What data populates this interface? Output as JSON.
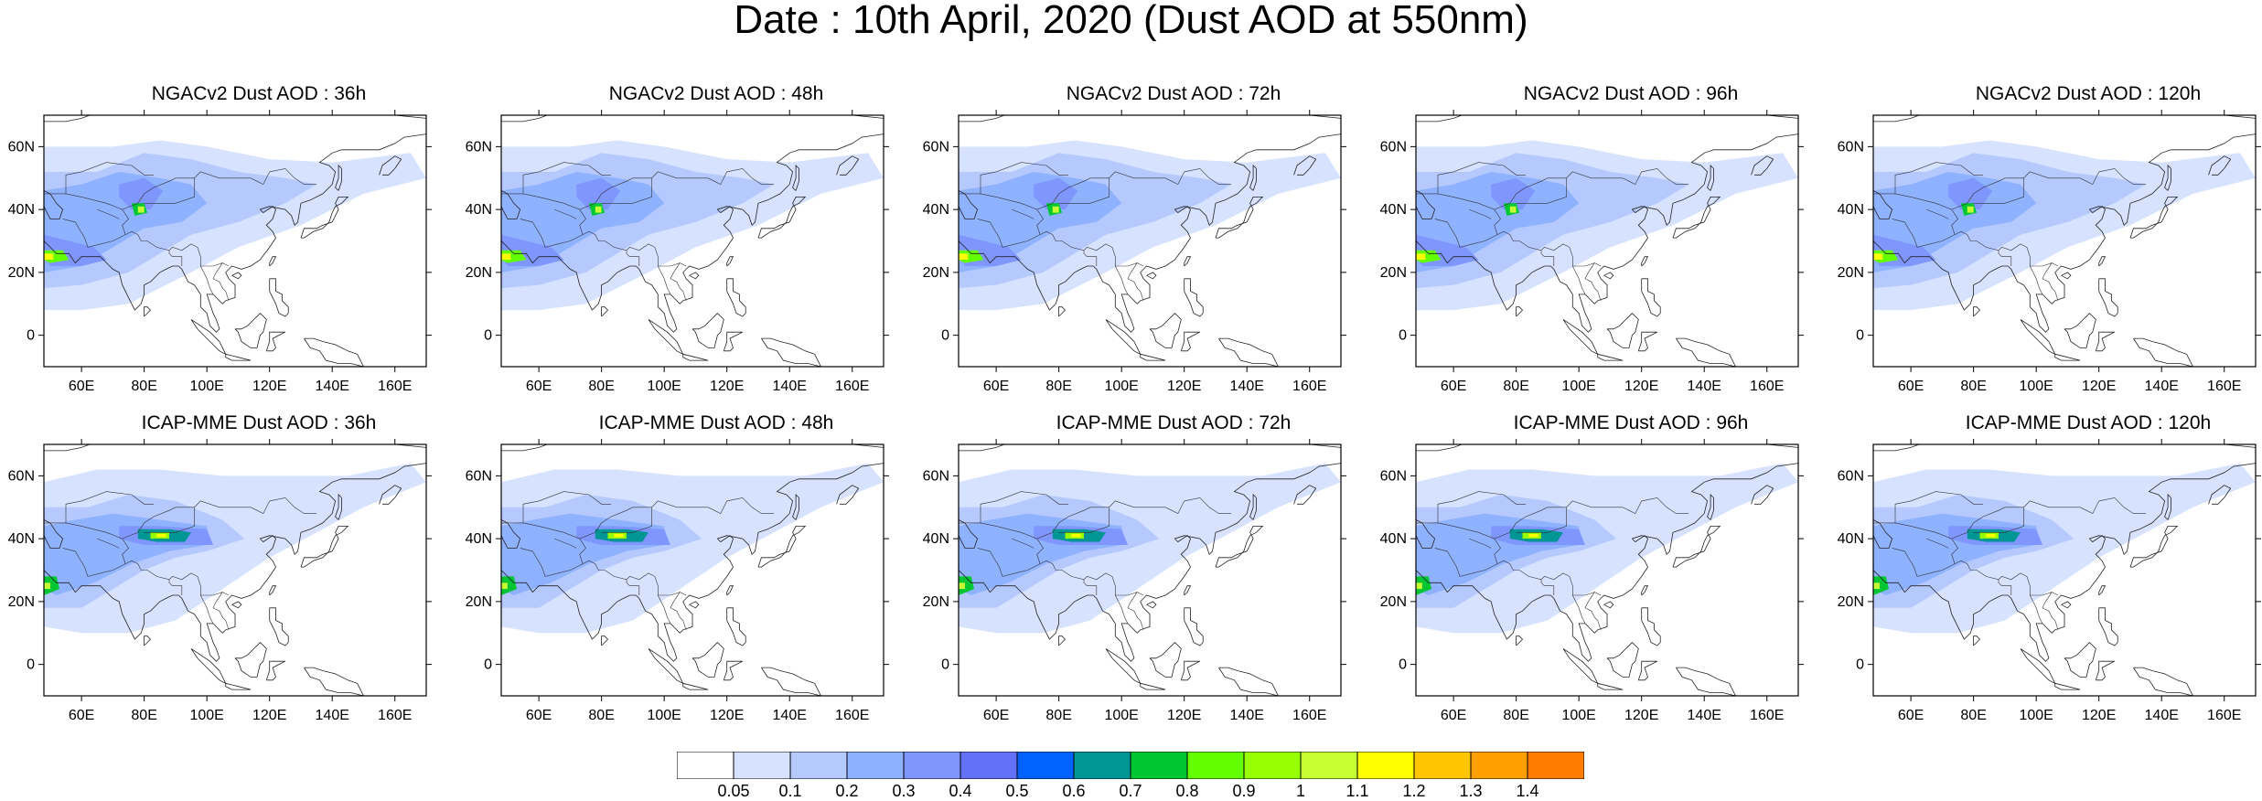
{
  "title": "Date : 10th April, 2020 (Dust AOD at 550nm)",
  "panels": [
    {
      "title": "NGACv2 Dust AOD : 36h",
      "model": "NGACv2",
      "hour": 36
    },
    {
      "title": "NGACv2 Dust AOD : 48h",
      "model": "NGACv2",
      "hour": 48
    },
    {
      "title": "NGACv2 Dust AOD : 72h",
      "model": "NGACv2",
      "hour": 72
    },
    {
      "title": "NGACv2 Dust AOD : 96h",
      "model": "NGACv2",
      "hour": 96
    },
    {
      "title": "NGACv2 Dust AOD : 120h",
      "model": "NGACv2",
      "hour": 120
    },
    {
      "title": "ICAP-MME Dust AOD : 36h",
      "model": "ICAP-MME",
      "hour": 36
    },
    {
      "title": "ICAP-MME Dust AOD : 48h",
      "model": "ICAP-MME",
      "hour": 48
    },
    {
      "title": "ICAP-MME Dust AOD : 72h",
      "model": "ICAP-MME",
      "hour": 72
    },
    {
      "title": "ICAP-MME Dust AOD : 96h",
      "model": "ICAP-MME",
      "hour": 96
    },
    {
      "title": "ICAP-MME Dust AOD : 120h",
      "model": "ICAP-MME",
      "hour": 120
    }
  ],
  "axes": {
    "lon_ticks": [
      "60E",
      "80E",
      "100E",
      "120E",
      "140E",
      "160E"
    ],
    "lat_ticks": [
      "60N",
      "40N",
      "20N",
      "0"
    ]
  },
  "colorbar": {
    "labels": [
      "0.05",
      "0.1",
      "0.2",
      "0.3",
      "0.4",
      "0.5",
      "0.6",
      "0.7",
      "0.8",
      "0.9",
      "1",
      "1.1",
      "1.2",
      "1.3",
      "1.4"
    ],
    "colors": [
      "#ffffff",
      "#d6e2ff",
      "#b5c9ff",
      "#8eb2ff",
      "#7f96ff",
      "#6370f8",
      "#0063ff",
      "#009696",
      "#00c633",
      "#63ff00",
      "#96ff00",
      "#c6ff33",
      "#ffff00",
      "#ffc600",
      "#ffa000",
      "#ff7c00",
      "#ff1900"
    ]
  }
}
